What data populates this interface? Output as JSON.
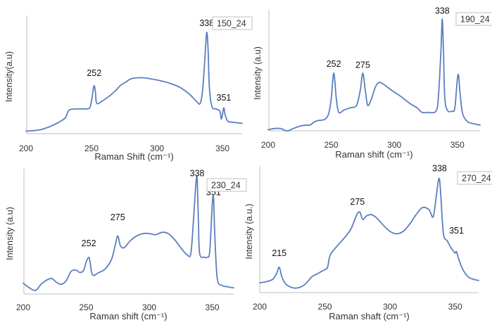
{
  "chart_data": [
    {
      "type": "line",
      "sample_label": "150_24",
      "xlabel": "Raman Shift (cm⁻¹)",
      "ylabel": "Intensity(a.u)",
      "xlim": [
        200,
        365
      ],
      "ylim": [
        0,
        1
      ],
      "xticks": [
        200,
        250,
        300,
        350
      ],
      "grid": false,
      "line_color": "#5b7fc0",
      "annotations": [
        {
          "x": 252,
          "y": 0.48,
          "text": "252"
        },
        {
          "x": 338,
          "y": 0.93,
          "text": "338"
        },
        {
          "x": 351,
          "y": 0.26,
          "text": "351"
        }
      ],
      "series": [
        {
          "values": [
            [
              200,
              0.01
            ],
            [
              210,
              0.02
            ],
            [
              218,
              0.05
            ],
            [
              225,
              0.09
            ],
            [
              230,
              0.13
            ],
            [
              233,
              0.2
            ],
            [
              240,
              0.21
            ],
            [
              246,
              0.21
            ],
            [
              249,
              0.23
            ],
            [
              251,
              0.36
            ],
            [
              252,
              0.42
            ],
            [
              253,
              0.36
            ],
            [
              254,
              0.26
            ],
            [
              258,
              0.28
            ],
            [
              263,
              0.32
            ],
            [
              268,
              0.37
            ],
            [
              272,
              0.42
            ],
            [
              276,
              0.45
            ],
            [
              280,
              0.48
            ],
            [
              285,
              0.49
            ],
            [
              290,
              0.49
            ],
            [
              300,
              0.47
            ],
            [
              310,
              0.44
            ],
            [
              318,
              0.4
            ],
            [
              325,
              0.34
            ],
            [
              330,
              0.28
            ],
            [
              333,
              0.26
            ],
            [
              335,
              0.4
            ],
            [
              337,
              0.75
            ],
            [
              338,
              0.9
            ],
            [
              339,
              0.75
            ],
            [
              340,
              0.4
            ],
            [
              342,
              0.23
            ],
            [
              345,
              0.21
            ],
            [
              348,
              0.19
            ],
            [
              349,
              0.12
            ],
            [
              350,
              0.16
            ],
            [
              351,
              0.22
            ],
            [
              352,
              0.16
            ],
            [
              354,
              0.1
            ],
            [
              358,
              0.09
            ],
            [
              365,
              0.08
            ]
          ]
        }
      ]
    },
    {
      "type": "line",
      "sample_label": "190_24",
      "xlabel": "Raman shift (cm⁻¹)",
      "ylabel": "Intensity (a.u)",
      "xlim": [
        200,
        368
      ],
      "ylim": [
        0,
        1
      ],
      "xticks": [
        200,
        250,
        300,
        350
      ],
      "grid": false,
      "line_color": "#5b7fc0",
      "annotations": [
        {
          "x": 252,
          "y": 0.53,
          "text": "252"
        },
        {
          "x": 275,
          "y": 0.52,
          "text": "275"
        },
        {
          "x": 338,
          "y": 0.99,
          "text": "338"
        }
      ],
      "series": [
        {
          "values": [
            [
              200,
              0.01
            ],
            [
              205,
              0.02
            ],
            [
              210,
              0.02
            ],
            [
              215,
              0.0
            ],
            [
              220,
              0.02
            ],
            [
              225,
              0.04
            ],
            [
              230,
              0.05
            ],
            [
              233,
              0.05
            ],
            [
              237,
              0.08
            ],
            [
              240,
              0.09
            ],
            [
              245,
              0.1
            ],
            [
              248,
              0.15
            ],
            [
              250,
              0.28
            ],
            [
              252,
              0.5
            ],
            [
              254,
              0.28
            ],
            [
              256,
              0.16
            ],
            [
              260,
              0.18
            ],
            [
              265,
              0.2
            ],
            [
              270,
              0.22
            ],
            [
              273,
              0.35
            ],
            [
              275,
              0.5
            ],
            [
              277,
              0.35
            ],
            [
              279,
              0.22
            ],
            [
              282,
              0.28
            ],
            [
              285,
              0.38
            ],
            [
              288,
              0.42
            ],
            [
              292,
              0.4
            ],
            [
              298,
              0.35
            ],
            [
              305,
              0.3
            ],
            [
              312,
              0.24
            ],
            [
              318,
              0.2
            ],
            [
              322,
              0.16
            ],
            [
              326,
              0.16
            ],
            [
              333,
              0.17
            ],
            [
              335,
              0.3
            ],
            [
              337,
              0.7
            ],
            [
              338,
              0.97
            ],
            [
              339,
              0.7
            ],
            [
              340,
              0.3
            ],
            [
              342,
              0.18
            ],
            [
              346,
              0.17
            ],
            [
              348,
              0.2
            ],
            [
              350,
              0.45
            ],
            [
              351,
              0.48
            ],
            [
              352,
              0.35
            ],
            [
              354,
              0.16
            ],
            [
              358,
              0.08
            ],
            [
              364,
              0.06
            ],
            [
              368,
              0.05
            ]
          ]
        }
      ]
    },
    {
      "type": "line",
      "sample_label": "230_24",
      "xlabel": "Raman shift (cm⁻¹)",
      "ylabel": "Intensity (a.u)",
      "xlim": [
        200,
        367
      ],
      "ylim": [
        0,
        1
      ],
      "xticks": [
        200,
        250,
        300,
        350
      ],
      "grid": false,
      "line_color": "#5b7fc0",
      "annotations": [
        {
          "x": 252,
          "y": 0.37,
          "text": "252"
        },
        {
          "x": 275,
          "y": 0.59,
          "text": "275"
        },
        {
          "x": 338,
          "y": 0.96,
          "text": "338"
        },
        {
          "x": 351,
          "y": 0.8,
          "text": "351"
        }
      ],
      "series": [
        {
          "values": [
            [
              200,
              0.08
            ],
            [
              205,
              0.04
            ],
            [
              210,
              0.02
            ],
            [
              215,
              0.08
            ],
            [
              222,
              0.12
            ],
            [
              226,
              0.09
            ],
            [
              230,
              0.07
            ],
            [
              234,
              0.1
            ],
            [
              238,
              0.18
            ],
            [
              242,
              0.19
            ],
            [
              245,
              0.17
            ],
            [
              248,
              0.19
            ],
            [
              250,
              0.26
            ],
            [
              252,
              0.3
            ],
            [
              253,
              0.26
            ],
            [
              255,
              0.15
            ],
            [
              260,
              0.17
            ],
            [
              265,
              0.2
            ],
            [
              270,
              0.28
            ],
            [
              273,
              0.4
            ],
            [
              275,
              0.48
            ],
            [
              277,
              0.4
            ],
            [
              280,
              0.38
            ],
            [
              285,
              0.44
            ],
            [
              290,
              0.48
            ],
            [
              295,
              0.5
            ],
            [
              300,
              0.5
            ],
            [
              305,
              0.49
            ],
            [
              310,
              0.51
            ],
            [
              315,
              0.5
            ],
            [
              320,
              0.45
            ],
            [
              325,
              0.38
            ],
            [
              330,
              0.32
            ],
            [
              333,
              0.33
            ],
            [
              335,
              0.6
            ],
            [
              337,
              0.92
            ],
            [
              338,
              0.96
            ],
            [
              339,
              0.6
            ],
            [
              340,
              0.33
            ],
            [
              344,
              0.3
            ],
            [
              346,
              0.3
            ],
            [
              348,
              0.35
            ],
            [
              350,
              0.75
            ],
            [
              351,
              0.8
            ],
            [
              352,
              0.5
            ],
            [
              354,
              0.12
            ],
            [
              358,
              0.06
            ],
            [
              362,
              0.05
            ],
            [
              367,
              0.04
            ]
          ]
        }
      ]
    },
    {
      "type": "line",
      "sample_label": "270_24",
      "xlabel": "Raman shaft (cm⁻¹)",
      "ylabel": "Intensity (a.u.)",
      "xlim": [
        200,
        368
      ],
      "ylim": [
        0,
        1
      ],
      "xticks": [
        200,
        250,
        300,
        350
      ],
      "grid": false,
      "line_color": "#5b7fc0",
      "annotations": [
        {
          "x": 215,
          "y": 0.27,
          "text": "215"
        },
        {
          "x": 275,
          "y": 0.7,
          "text": "275"
        },
        {
          "x": 338,
          "y": 0.98,
          "text": "338"
        },
        {
          "x": 351,
          "y": 0.46,
          "text": "351"
        }
      ],
      "series": [
        {
          "values": [
            [
              200,
              0.07
            ],
            [
              205,
              0.08
            ],
            [
              210,
              0.1
            ],
            [
              213,
              0.15
            ],
            [
              215,
              0.2
            ],
            [
              217,
              0.12
            ],
            [
              220,
              0.06
            ],
            [
              225,
              0.03
            ],
            [
              230,
              0.03
            ],
            [
              235,
              0.06
            ],
            [
              240,
              0.12
            ],
            [
              245,
              0.15
            ],
            [
              248,
              0.17
            ],
            [
              250,
              0.18
            ],
            [
              252,
              0.2
            ],
            [
              254,
              0.3
            ],
            [
              258,
              0.36
            ],
            [
              262,
              0.41
            ],
            [
              266,
              0.46
            ],
            [
              270,
              0.52
            ],
            [
              273,
              0.6
            ],
            [
              275,
              0.65
            ],
            [
              277,
              0.66
            ],
            [
              279,
              0.6
            ],
            [
              282,
              0.63
            ],
            [
              286,
              0.64
            ],
            [
              290,
              0.61
            ],
            [
              295,
              0.55
            ],
            [
              300,
              0.5
            ],
            [
              305,
              0.48
            ],
            [
              310,
              0.5
            ],
            [
              315,
              0.56
            ],
            [
              320,
              0.64
            ],
            [
              325,
              0.7
            ],
            [
              330,
              0.68
            ],
            [
              333,
              0.62
            ],
            [
              335,
              0.75
            ],
            [
              337,
              0.92
            ],
            [
              338,
              0.93
            ],
            [
              339,
              0.8
            ],
            [
              341,
              0.48
            ],
            [
              344,
              0.42
            ],
            [
              347,
              0.36
            ],
            [
              350,
              0.32
            ],
            [
              351,
              0.33
            ],
            [
              353,
              0.26
            ],
            [
              356,
              0.18
            ],
            [
              360,
              0.12
            ],
            [
              364,
              0.1
            ],
            [
              368,
              0.09
            ]
          ]
        }
      ]
    }
  ]
}
